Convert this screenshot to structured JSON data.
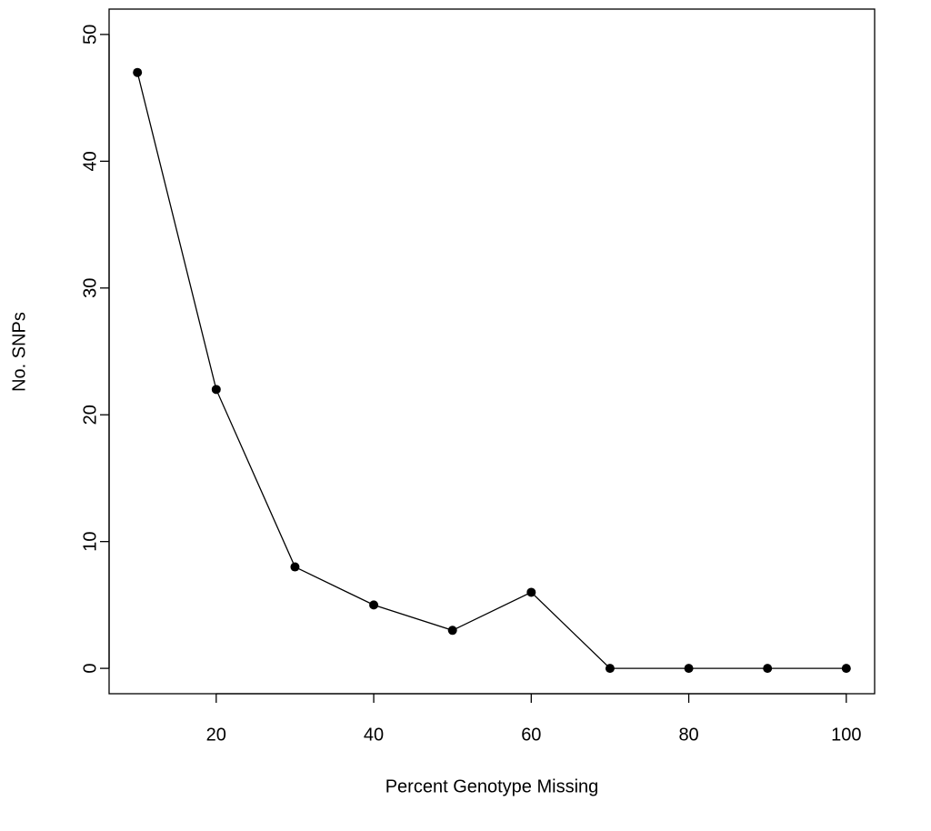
{
  "chart_data": {
    "type": "line",
    "xlabel": "Percent Genotype Missing",
    "ylabel": "No. SNPs",
    "x": [
      10,
      20,
      30,
      40,
      50,
      60,
      70,
      80,
      90,
      100
    ],
    "values": [
      47,
      22,
      8,
      5,
      3,
      6,
      0,
      0,
      0,
      0
    ],
    "color": "#000000",
    "xlim": [
      6.4,
      103.6
    ],
    "xticks": [
      20,
      40,
      60,
      80,
      100
    ],
    "ylim": [
      -2,
      52
    ],
    "yticks": [
      0,
      10,
      20,
      30,
      40,
      50
    ]
  }
}
